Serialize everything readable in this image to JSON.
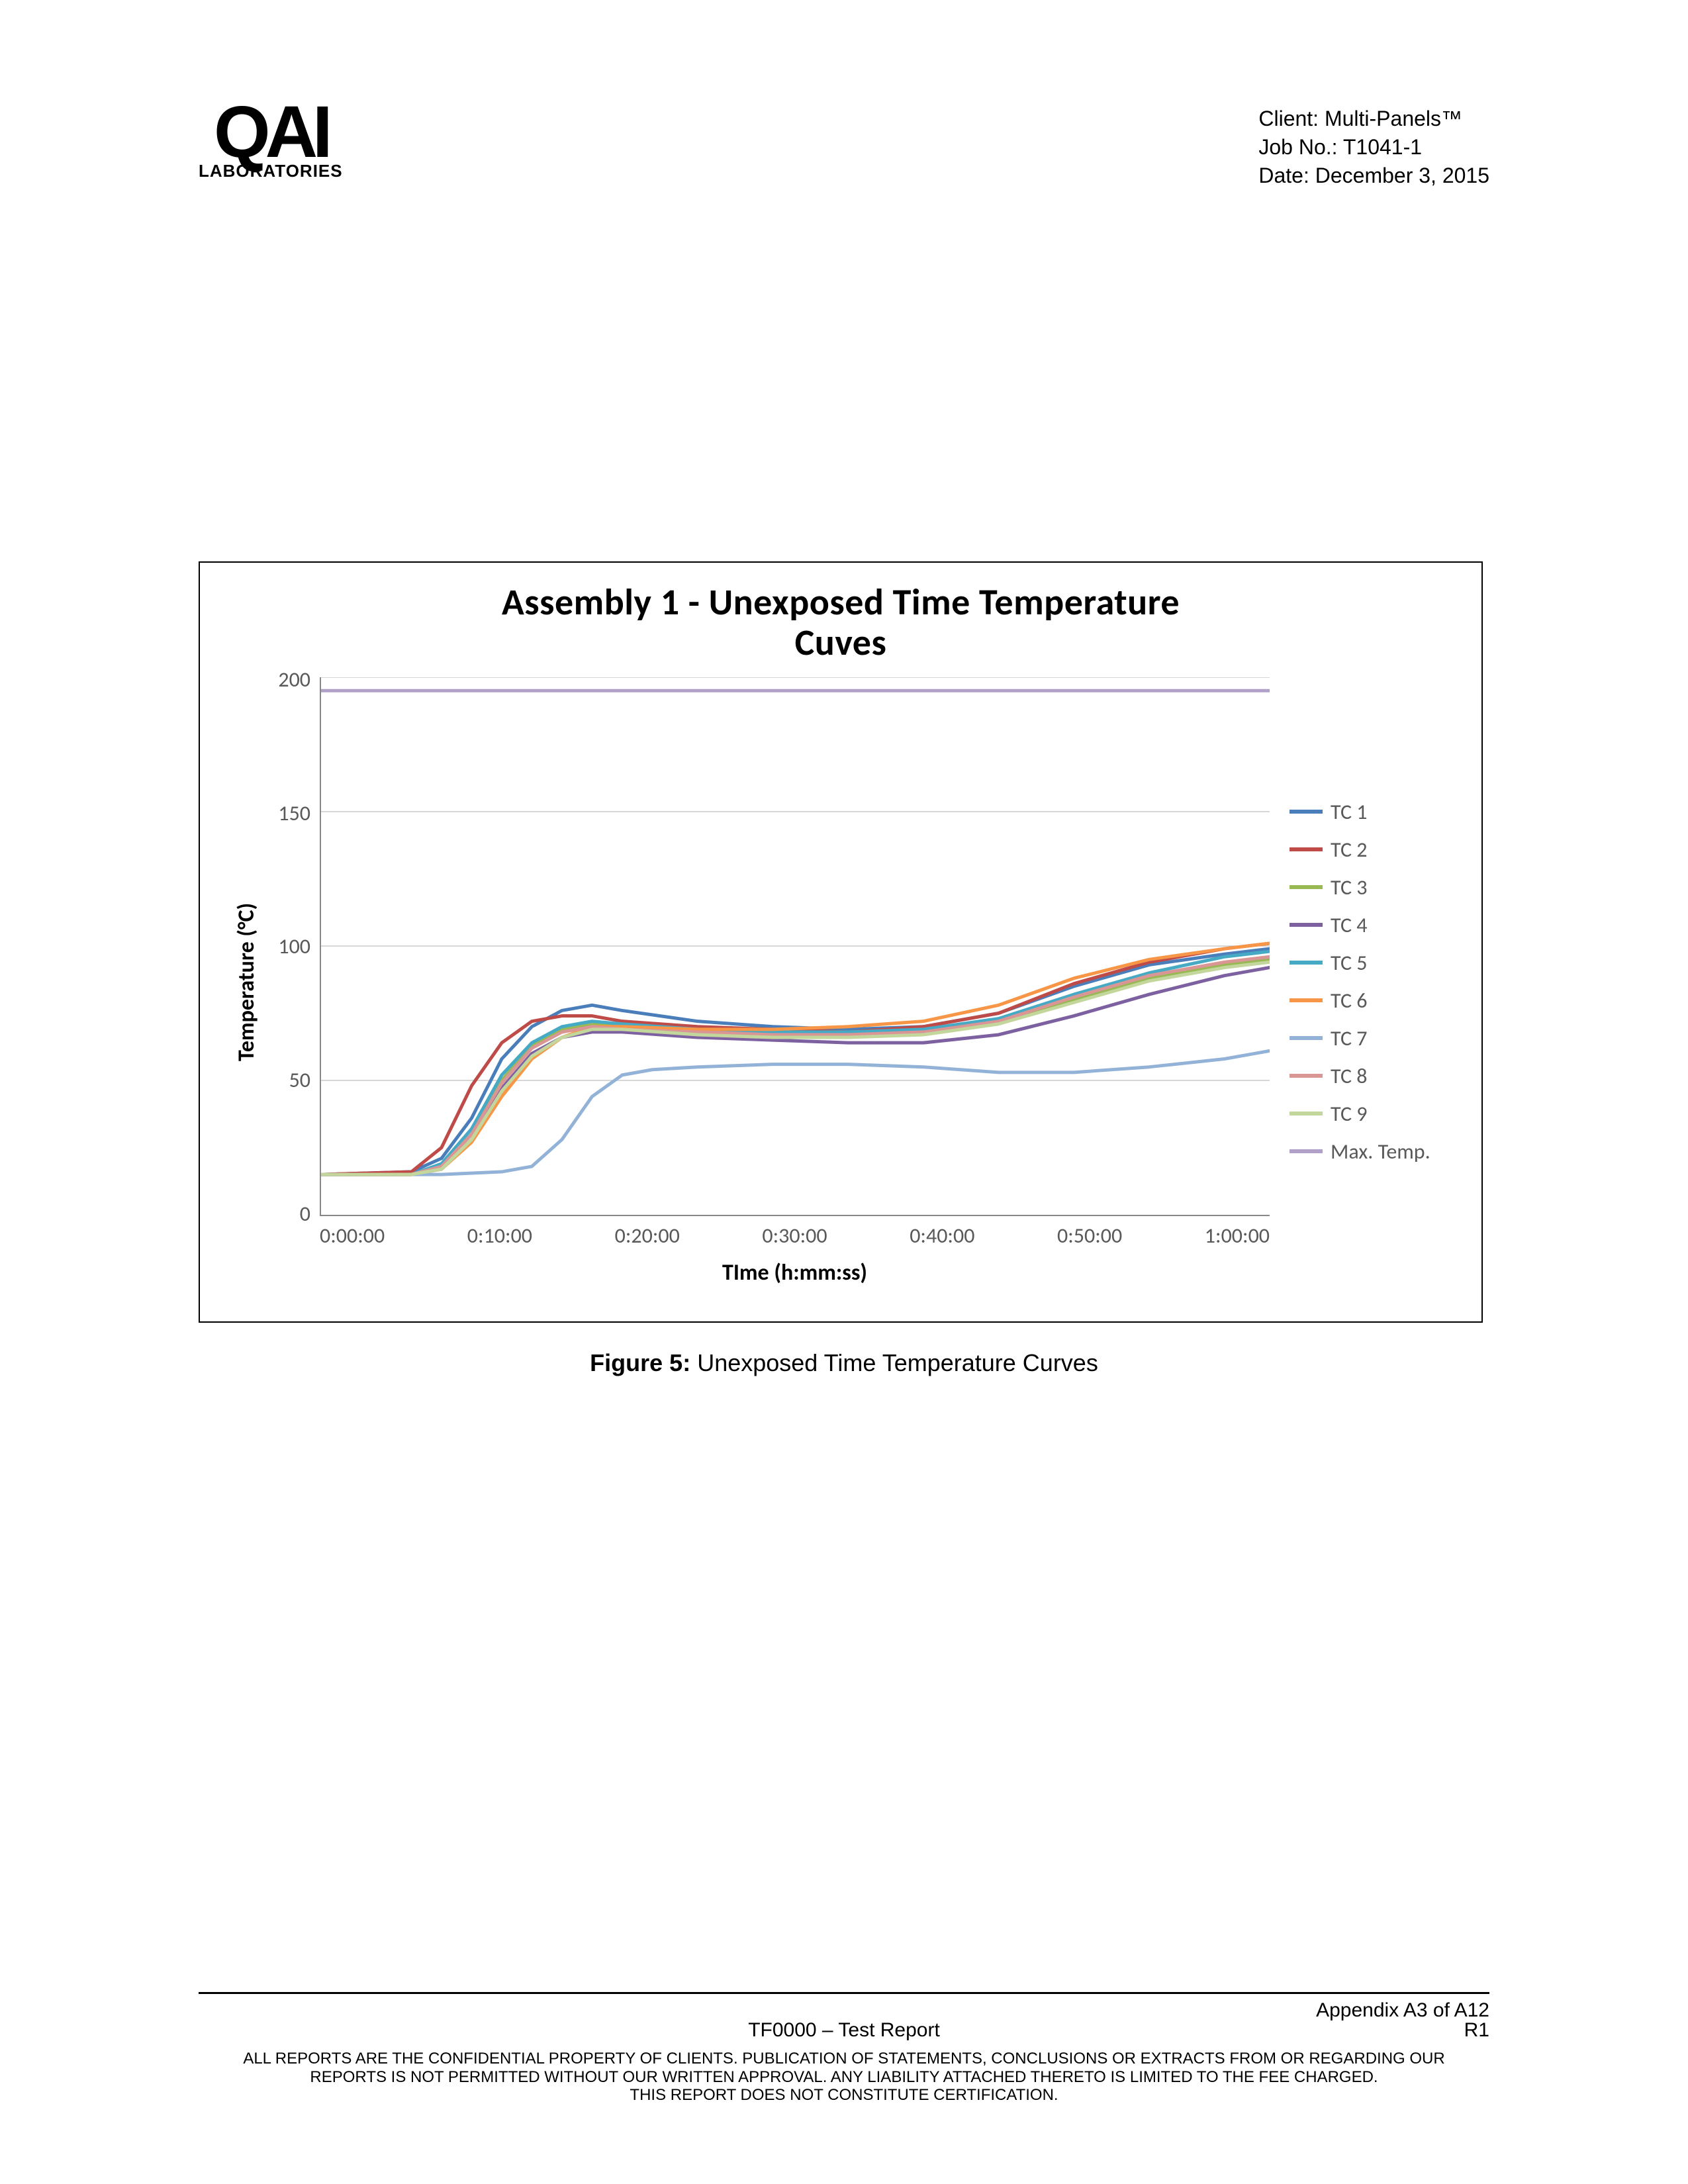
{
  "header": {
    "logo_main": "QAI",
    "logo_sub": "LABORATORIES",
    "client_label": "Client: ",
    "client_value": "Multi-Panels™",
    "job_label": "Job No.: ",
    "job_value": "T1041-1",
    "date_label": "Date: ",
    "date_value": "December 3, 2015"
  },
  "chart": {
    "title_line1": "Assembly 1 - Unexposed  Time Temperature",
    "title_line2": "Cuves",
    "ylabel": "Temperature (°C)",
    "xlabel": "TIme (h:mm:ss)",
    "ylim": [
      0,
      200
    ],
    "ytick_step": 50,
    "yticks": [
      "200",
      "150",
      "100",
      "50",
      "0"
    ],
    "xticks": [
      "0:00:00",
      "0:10:00",
      "0:20:00",
      "0:30:00",
      "0:40:00",
      "0:50:00",
      "1:00:00"
    ],
    "x_range_minutes": [
      0,
      63
    ],
    "grid_color": "#bfbfbf",
    "axis_color": "#888888",
    "background_color": "#ffffff",
    "title_fontsize": 56,
    "label_fontsize": 34,
    "tick_fontsize": 32,
    "line_width": 5,
    "series": [
      {
        "name": "TC 1",
        "color": "#4a7ebb",
        "data": [
          [
            0,
            15
          ],
          [
            6,
            16
          ],
          [
            8,
            21
          ],
          [
            10,
            36
          ],
          [
            12,
            58
          ],
          [
            14,
            70
          ],
          [
            16,
            76
          ],
          [
            18,
            78
          ],
          [
            20,
            76
          ],
          [
            25,
            72
          ],
          [
            30,
            70
          ],
          [
            35,
            69
          ],
          [
            40,
            70
          ],
          [
            45,
            75
          ],
          [
            50,
            85
          ],
          [
            55,
            93
          ],
          [
            60,
            97
          ],
          [
            63,
            99
          ]
        ]
      },
      {
        "name": "TC 2",
        "color": "#be4b48",
        "data": [
          [
            0,
            15
          ],
          [
            6,
            16
          ],
          [
            8,
            25
          ],
          [
            10,
            48
          ],
          [
            12,
            64
          ],
          [
            14,
            72
          ],
          [
            16,
            74
          ],
          [
            18,
            74
          ],
          [
            20,
            72
          ],
          [
            25,
            70
          ],
          [
            30,
            69
          ],
          [
            35,
            68
          ],
          [
            40,
            70
          ],
          [
            45,
            75
          ],
          [
            50,
            86
          ],
          [
            55,
            94
          ],
          [
            60,
            99
          ],
          [
            63,
            101
          ]
        ]
      },
      {
        "name": "TC 3",
        "color": "#98b954",
        "data": [
          [
            0,
            15
          ],
          [
            6,
            15
          ],
          [
            8,
            18
          ],
          [
            10,
            30
          ],
          [
            12,
            50
          ],
          [
            14,
            63
          ],
          [
            16,
            69
          ],
          [
            18,
            71
          ],
          [
            20,
            70
          ],
          [
            25,
            68
          ],
          [
            30,
            67
          ],
          [
            35,
            67
          ],
          [
            40,
            68
          ],
          [
            45,
            72
          ],
          [
            50,
            80
          ],
          [
            55,
            88
          ],
          [
            60,
            93
          ],
          [
            63,
            95
          ]
        ]
      },
      {
        "name": "TC 4",
        "color": "#7d60a0",
        "data": [
          [
            0,
            15
          ],
          [
            6,
            15
          ],
          [
            8,
            17
          ],
          [
            10,
            28
          ],
          [
            12,
            47
          ],
          [
            14,
            60
          ],
          [
            16,
            66
          ],
          [
            18,
            68
          ],
          [
            20,
            68
          ],
          [
            25,
            66
          ],
          [
            30,
            65
          ],
          [
            35,
            64
          ],
          [
            40,
            64
          ],
          [
            45,
            67
          ],
          [
            50,
            74
          ],
          [
            55,
            82
          ],
          [
            60,
            89
          ],
          [
            63,
            92
          ]
        ]
      },
      {
        "name": "TC 5",
        "color": "#46aac5",
        "data": [
          [
            0,
            15
          ],
          [
            6,
            15
          ],
          [
            8,
            19
          ],
          [
            10,
            32
          ],
          [
            12,
            52
          ],
          [
            14,
            64
          ],
          [
            16,
            70
          ],
          [
            18,
            72
          ],
          [
            20,
            71
          ],
          [
            25,
            69
          ],
          [
            30,
            68
          ],
          [
            35,
            68
          ],
          [
            40,
            69
          ],
          [
            45,
            73
          ],
          [
            50,
            82
          ],
          [
            55,
            90
          ],
          [
            60,
            96
          ],
          [
            63,
            98
          ]
        ]
      },
      {
        "name": "TC 6",
        "color": "#f79646",
        "data": [
          [
            0,
            15
          ],
          [
            6,
            15
          ],
          [
            8,
            17
          ],
          [
            10,
            27
          ],
          [
            12,
            44
          ],
          [
            14,
            58
          ],
          [
            16,
            66
          ],
          [
            18,
            70
          ],
          [
            20,
            70
          ],
          [
            25,
            69
          ],
          [
            30,
            69
          ],
          [
            35,
            70
          ],
          [
            40,
            72
          ],
          [
            45,
            78
          ],
          [
            50,
            88
          ],
          [
            55,
            95
          ],
          [
            60,
            99
          ],
          [
            63,
            101
          ]
        ]
      },
      {
        "name": "TC 7",
        "color": "#93b2d7",
        "data": [
          [
            0,
            15
          ],
          [
            8,
            15
          ],
          [
            12,
            16
          ],
          [
            14,
            18
          ],
          [
            16,
            28
          ],
          [
            18,
            44
          ],
          [
            20,
            52
          ],
          [
            22,
            54
          ],
          [
            25,
            55
          ],
          [
            30,
            56
          ],
          [
            35,
            56
          ],
          [
            40,
            55
          ],
          [
            45,
            53
          ],
          [
            50,
            53
          ],
          [
            55,
            55
          ],
          [
            60,
            58
          ],
          [
            63,
            61
          ]
        ]
      },
      {
        "name": "TC 8",
        "color": "#d99694",
        "data": [
          [
            0,
            15
          ],
          [
            6,
            15
          ],
          [
            8,
            18
          ],
          [
            10,
            30
          ],
          [
            12,
            49
          ],
          [
            14,
            62
          ],
          [
            16,
            68
          ],
          [
            18,
            70
          ],
          [
            20,
            69
          ],
          [
            25,
            68
          ],
          [
            30,
            67
          ],
          [
            35,
            67
          ],
          [
            40,
            68
          ],
          [
            45,
            72
          ],
          [
            50,
            81
          ],
          [
            55,
            89
          ],
          [
            60,
            94
          ],
          [
            63,
            96
          ]
        ]
      },
      {
        "name": "TC 9",
        "color": "#c3d69b",
        "data": [
          [
            0,
            15
          ],
          [
            6,
            15
          ],
          [
            8,
            17
          ],
          [
            10,
            28
          ],
          [
            12,
            46
          ],
          [
            14,
            59
          ],
          [
            16,
            66
          ],
          [
            18,
            69
          ],
          [
            20,
            69
          ],
          [
            25,
            67
          ],
          [
            30,
            66
          ],
          [
            35,
            66
          ],
          [
            40,
            67
          ],
          [
            45,
            71
          ],
          [
            50,
            79
          ],
          [
            55,
            87
          ],
          [
            60,
            92
          ],
          [
            63,
            94
          ]
        ]
      },
      {
        "name": "Max. Temp.",
        "color": "#b1a0c7",
        "data": [
          [
            0,
            195
          ],
          [
            63,
            195
          ]
        ]
      }
    ]
  },
  "caption": {
    "label": "Figure 5: ",
    "text": "Unexposed Time Temperature Curves"
  },
  "footer": {
    "appendix": "Appendix A3 of A12",
    "center": "TF0000 – Test Report",
    "rev": "R1",
    "disclaimer_l1": "ALL REPORTS ARE THE CONFIDENTIAL PROPERTY OF CLIENTS. PUBLICATION OF STATEMENTS, CONCLUSIONS OR EXTRACTS FROM OR REGARDING OUR",
    "disclaimer_l2": "REPORTS IS NOT PERMITTED WITHOUT OUR WRITTEN APPROVAL. ANY LIABILITY ATTACHED THERETO IS LIMITED TO THE FEE CHARGED.",
    "disclaimer_l3": "THIS REPORT DOES NOT CONSTITUTE CERTIFICATION."
  }
}
